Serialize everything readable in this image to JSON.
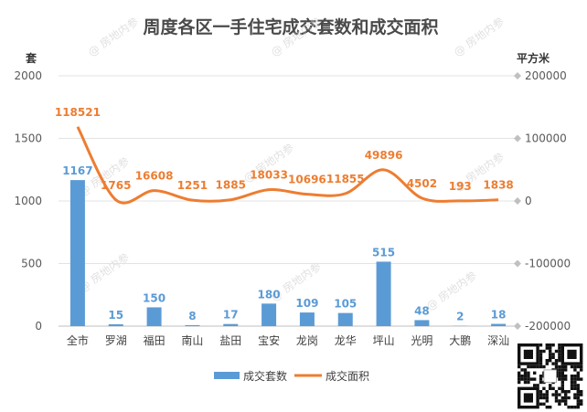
{
  "chart_data": {
    "type": "bar+line",
    "title": "周度各区一手住宅成交套数和成交面积",
    "y_left_unit": "套",
    "y_right_unit": "平方米",
    "ylim_left": [
      0,
      2000
    ],
    "yticks_left": [
      "0",
      "500",
      "1000",
      "1500",
      "2000"
    ],
    "ylim_right": [
      -200000,
      200000
    ],
    "yticks_right": [
      "-200000",
      "-100000",
      "0",
      "100000",
      "200000"
    ],
    "grid": true,
    "legend_position": "bottom",
    "categories": [
      "全市",
      "罗湖",
      "福田",
      "南山",
      "盐田",
      "宝安",
      "龙岗",
      "龙华",
      "坪山",
      "光明",
      "大鹏",
      "深汕"
    ],
    "series": [
      {
        "name": "成交套数",
        "type": "bar",
        "axis": "left",
        "color": "#5b9bd5",
        "values": [
          1167,
          15,
          150,
          8,
          17,
          180,
          109,
          105,
          515,
          48,
          2,
          18
        ]
      },
      {
        "name": "成交面积",
        "type": "line",
        "axis": "right",
        "color": "#ed7d31",
        "values": [
          118521,
          1765,
          16608,
          1251,
          1885,
          18033,
          10696,
          11855,
          49896,
          4502,
          193,
          1838
        ]
      }
    ],
    "watermark_text": "@ 房地内参"
  }
}
